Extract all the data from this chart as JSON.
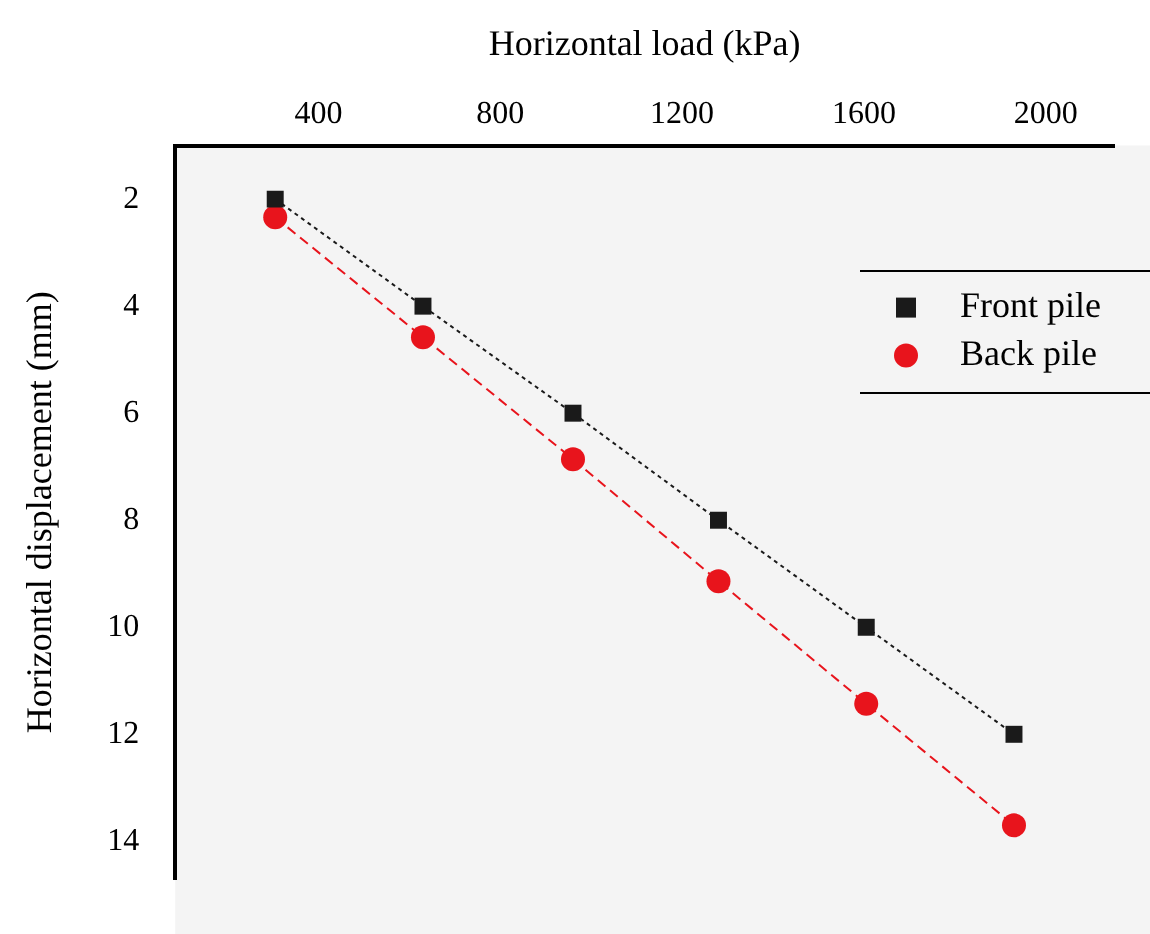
{
  "chart_data": {
    "type": "line",
    "xlabel": "Horizontal load (kPa)",
    "ylabel": "Horizontal displacement (mm)",
    "x": [
      305,
      630,
      960,
      1280,
      1605,
      1930
    ],
    "series": [
      {
        "name": "Front pile",
        "color": "#1a1a1a",
        "marker": "square",
        "line_style": "dotted",
        "values": [
          2,
          4,
          6,
          8,
          10,
          12
        ]
      },
      {
        "name": "Back pile",
        "color": "#e8141c",
        "marker": "circle",
        "line_style": "dashed",
        "values": [
          2.34,
          4.58,
          6.86,
          9.14,
          11.43,
          13.7
        ]
      }
    ],
    "xlim": [
      85,
      2150
    ],
    "xticks": [
      400,
      800,
      1200,
      1600,
      2000
    ],
    "ylim": [
      14.7,
      1
    ],
    "yticks": [
      2,
      4,
      6,
      8,
      10,
      12,
      14
    ],
    "legend": "top right",
    "grid": false
  }
}
